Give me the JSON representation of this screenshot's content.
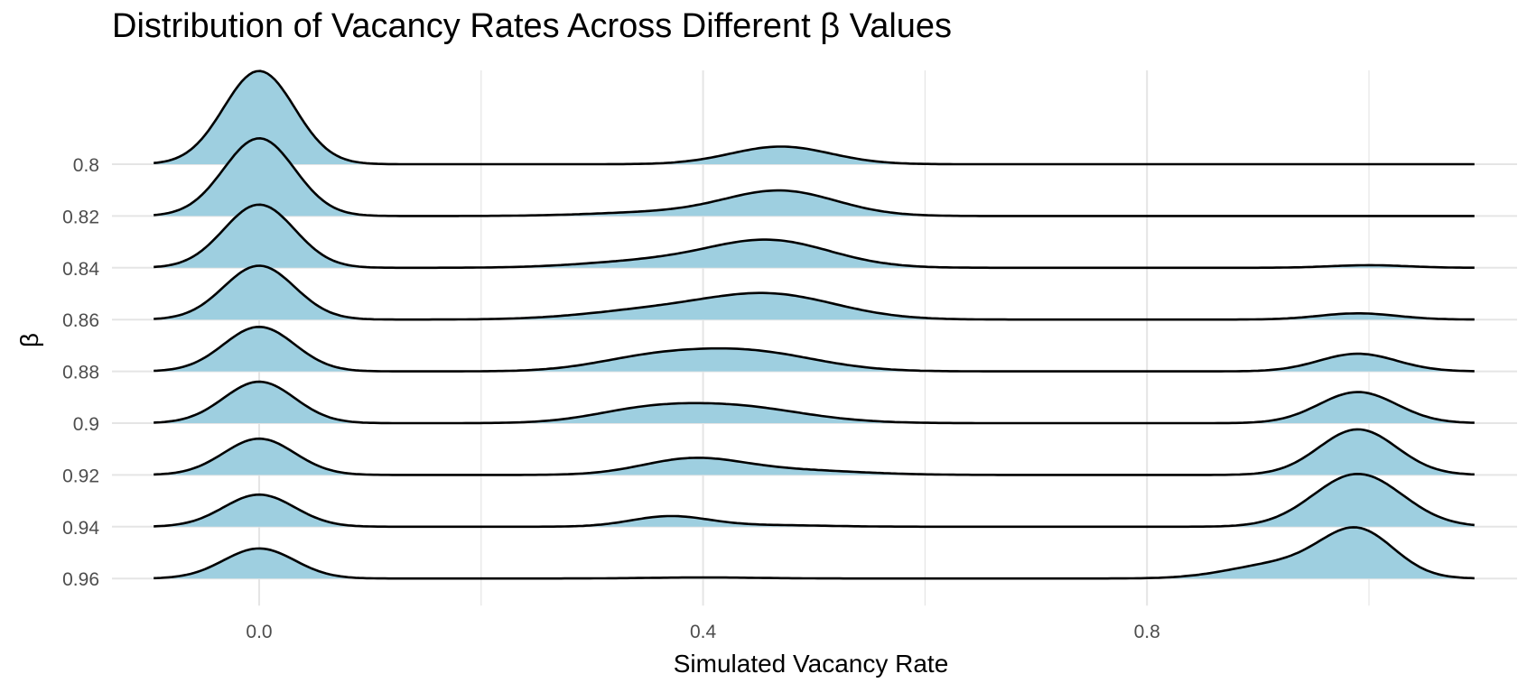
{
  "chart_data": {
    "type": "ridgeline",
    "title": "Distribution of Vacancy Rates Across Different β Values",
    "xlabel": "Simulated Vacancy Rate",
    "ylabel": "β",
    "x_ticks": [
      "0.0",
      "0.4",
      "0.8"
    ],
    "x_tick_values": [
      0.0,
      0.4,
      0.8
    ],
    "xlim": [
      -0.13,
      1.13
    ],
    "grid": "on",
    "fill_color": "#9ECFE0",
    "line_color": "#000000",
    "series": [
      {
        "name": "0.8",
        "components": [
          {
            "mu": 0.0,
            "sd": 0.032,
            "h": 1.8
          },
          {
            "mu": 0.47,
            "sd": 0.045,
            "h": 0.34
          }
        ]
      },
      {
        "name": "0.82",
        "components": [
          {
            "mu": 0.0,
            "sd": 0.032,
            "h": 1.5
          },
          {
            "mu": 0.47,
            "sd": 0.05,
            "h": 0.48
          },
          {
            "mu": 0.36,
            "sd": 0.06,
            "h": 0.07
          }
        ]
      },
      {
        "name": "0.84",
        "components": [
          {
            "mu": 0.0,
            "sd": 0.032,
            "h": 1.22
          },
          {
            "mu": 0.46,
            "sd": 0.055,
            "h": 0.52
          },
          {
            "mu": 0.35,
            "sd": 0.06,
            "h": 0.12
          },
          {
            "mu": 1.0,
            "sd": 0.035,
            "h": 0.05
          }
        ]
      },
      {
        "name": "0.86",
        "components": [
          {
            "mu": 0.0,
            "sd": 0.032,
            "h": 1.04
          },
          {
            "mu": 0.46,
            "sd": 0.06,
            "h": 0.48
          },
          {
            "mu": 0.35,
            "sd": 0.06,
            "h": 0.16
          },
          {
            "mu": 0.99,
            "sd": 0.035,
            "h": 0.12
          }
        ]
      },
      {
        "name": "0.88",
        "components": [
          {
            "mu": 0.0,
            "sd": 0.032,
            "h": 0.86
          },
          {
            "mu": 0.44,
            "sd": 0.06,
            "h": 0.38
          },
          {
            "mu": 0.35,
            "sd": 0.05,
            "h": 0.22
          },
          {
            "mu": 0.99,
            "sd": 0.035,
            "h": 0.34
          }
        ]
      },
      {
        "name": "0.9",
        "components": [
          {
            "mu": 0.0,
            "sd": 0.032,
            "h": 0.8
          },
          {
            "mu": 0.42,
            "sd": 0.065,
            "h": 0.34
          },
          {
            "mu": 0.34,
            "sd": 0.045,
            "h": 0.15
          },
          {
            "mu": 0.99,
            "sd": 0.035,
            "h": 0.6
          }
        ]
      },
      {
        "name": "0.92",
        "components": [
          {
            "mu": 0.0,
            "sd": 0.032,
            "h": 0.7
          },
          {
            "mu": 0.39,
            "sd": 0.045,
            "h": 0.3
          },
          {
            "mu": 0.48,
            "sd": 0.06,
            "h": 0.09
          },
          {
            "mu": 0.99,
            "sd": 0.035,
            "h": 0.88
          }
        ]
      },
      {
        "name": "0.94",
        "components": [
          {
            "mu": 0.0,
            "sd": 0.032,
            "h": 0.62
          },
          {
            "mu": 0.37,
            "sd": 0.035,
            "h": 0.2
          },
          {
            "mu": 0.46,
            "sd": 0.05,
            "h": 0.03
          },
          {
            "mu": 0.99,
            "sd": 0.04,
            "h": 1.02
          }
        ]
      },
      {
        "name": "0.96",
        "components": [
          {
            "mu": 0.0,
            "sd": 0.032,
            "h": 0.58
          },
          {
            "mu": 0.4,
            "sd": 0.05,
            "h": 0.02
          },
          {
            "mu": 0.99,
            "sd": 0.033,
            "h": 0.9
          },
          {
            "mu": 0.92,
            "sd": 0.045,
            "h": 0.28
          }
        ]
      }
    ]
  }
}
